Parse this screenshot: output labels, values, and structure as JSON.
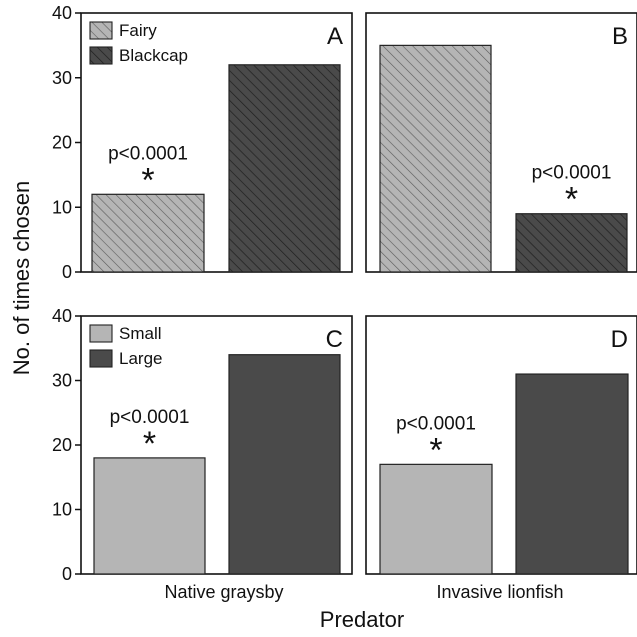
{
  "chart_data": [
    {
      "panel": "A",
      "type": "bar",
      "categories": [
        "Native graysby"
      ],
      "series": [
        {
          "name": "Fairy",
          "values": [
            12
          ],
          "fill": "hatch-light"
        },
        {
          "name": "Blackcap",
          "values": [
            32
          ],
          "fill": "hatch-dark"
        }
      ],
      "ylim": [
        0,
        40
      ],
      "yticks": [
        0,
        10,
        20,
        30,
        40
      ],
      "annotation": {
        "text": "p<0.0001",
        "marker": "*"
      },
      "legend": "top-left"
    },
    {
      "panel": "B",
      "type": "bar",
      "categories": [
        "Invasive lionfish"
      ],
      "series": [
        {
          "name": "Fairy",
          "values": [
            35
          ],
          "fill": "hatch-light"
        },
        {
          "name": "Blackcap",
          "values": [
            9
          ],
          "fill": "hatch-dark"
        }
      ],
      "ylim": [
        0,
        40
      ],
      "annotation": {
        "text": "p<0.0001",
        "marker": "*"
      }
    },
    {
      "panel": "C",
      "type": "bar",
      "categories": [
        "Native graysby"
      ],
      "series": [
        {
          "name": "Small",
          "values": [
            18
          ],
          "fill": "light"
        },
        {
          "name": "Large",
          "values": [
            34
          ],
          "fill": "dark"
        }
      ],
      "ylim": [
        0,
        40
      ],
      "yticks": [
        0,
        10,
        20,
        30,
        40
      ],
      "annotation": {
        "text": "p<0.0001",
        "marker": "*"
      },
      "legend": "top-left"
    },
    {
      "panel": "D",
      "type": "bar",
      "categories": [
        "Invasive lionfish"
      ],
      "series": [
        {
          "name": "Small",
          "values": [
            17
          ],
          "fill": "light"
        },
        {
          "name": "Large",
          "values": [
            31
          ],
          "fill": "dark"
        }
      ],
      "ylim": [
        0,
        40
      ],
      "annotation": {
        "text": "p<0.0001",
        "marker": "*"
      }
    }
  ],
  "ylabel": "No. of times chosen",
  "xlabel": "Predator",
  "x_categories": [
    "Native graysby",
    "Invasive lionfish"
  ],
  "colors": {
    "light": "#b5b5b5",
    "dark": "#4a4a4a",
    "hatch_line_light": "#5a5a5a",
    "hatch_line_dark": "#1e1e1e"
  }
}
